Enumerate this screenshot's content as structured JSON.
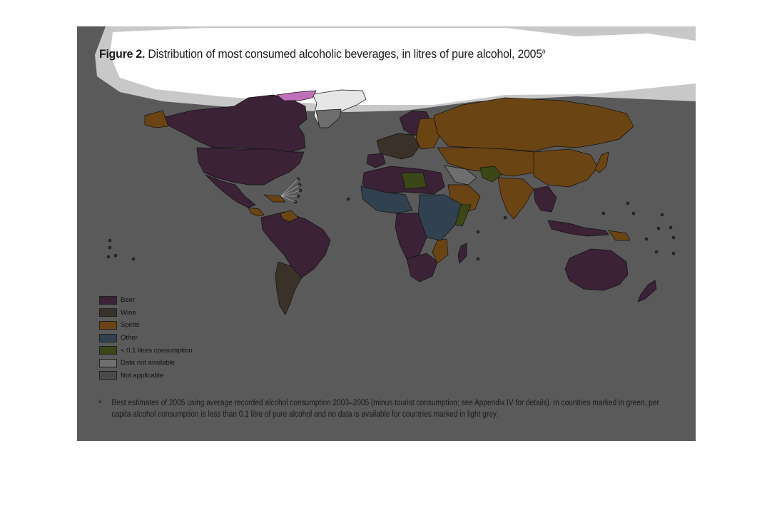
{
  "figure": {
    "title_prefix": "Figure 2.",
    "title_text": " Distribution of most consumed alcoholic beverages, in litres of pure alcohol, 2005",
    "title_superscript": "a"
  },
  "legend": {
    "items": [
      {
        "label": "Beer",
        "color": "#3b2237"
      },
      {
        "label": "Wine",
        "color": "#3a3228"
      },
      {
        "label": "Spirits",
        "color": "#6b4413"
      },
      {
        "label": "Other",
        "color": "#324150"
      },
      {
        "label": "< 0.1 litres consumption",
        "color": "#3b4716"
      },
      {
        "label": "Data not available",
        "color": "#6e6e6e"
      },
      {
        "label": "Not applicable",
        "color": "#4a4a4a"
      }
    ]
  },
  "footnote": {
    "marker": "a",
    "text": "Best estimates of 2005 using average recorded alcohol consumption 2003–2005 (minus tourist consumption; see Appendix IV for details). In countries marked in green, per capita alcohol consumption is less than 0.1 litre of pure alcohol and no data is available for countries marked in light grey."
  },
  "colors": {
    "background": "#5a5a5a",
    "ocean": "#5a5a5a",
    "arctic": "#c8c8c8",
    "greenland": "#eaeaea",
    "beer": "#3b2237",
    "wine": "#3a3228",
    "spirits": "#6b4413",
    "other": "#324150",
    "low": "#3b4716",
    "na": "#6e6e6e",
    "notapplicable": "#4a4a4a",
    "highlight_pink": "#c070b8"
  }
}
